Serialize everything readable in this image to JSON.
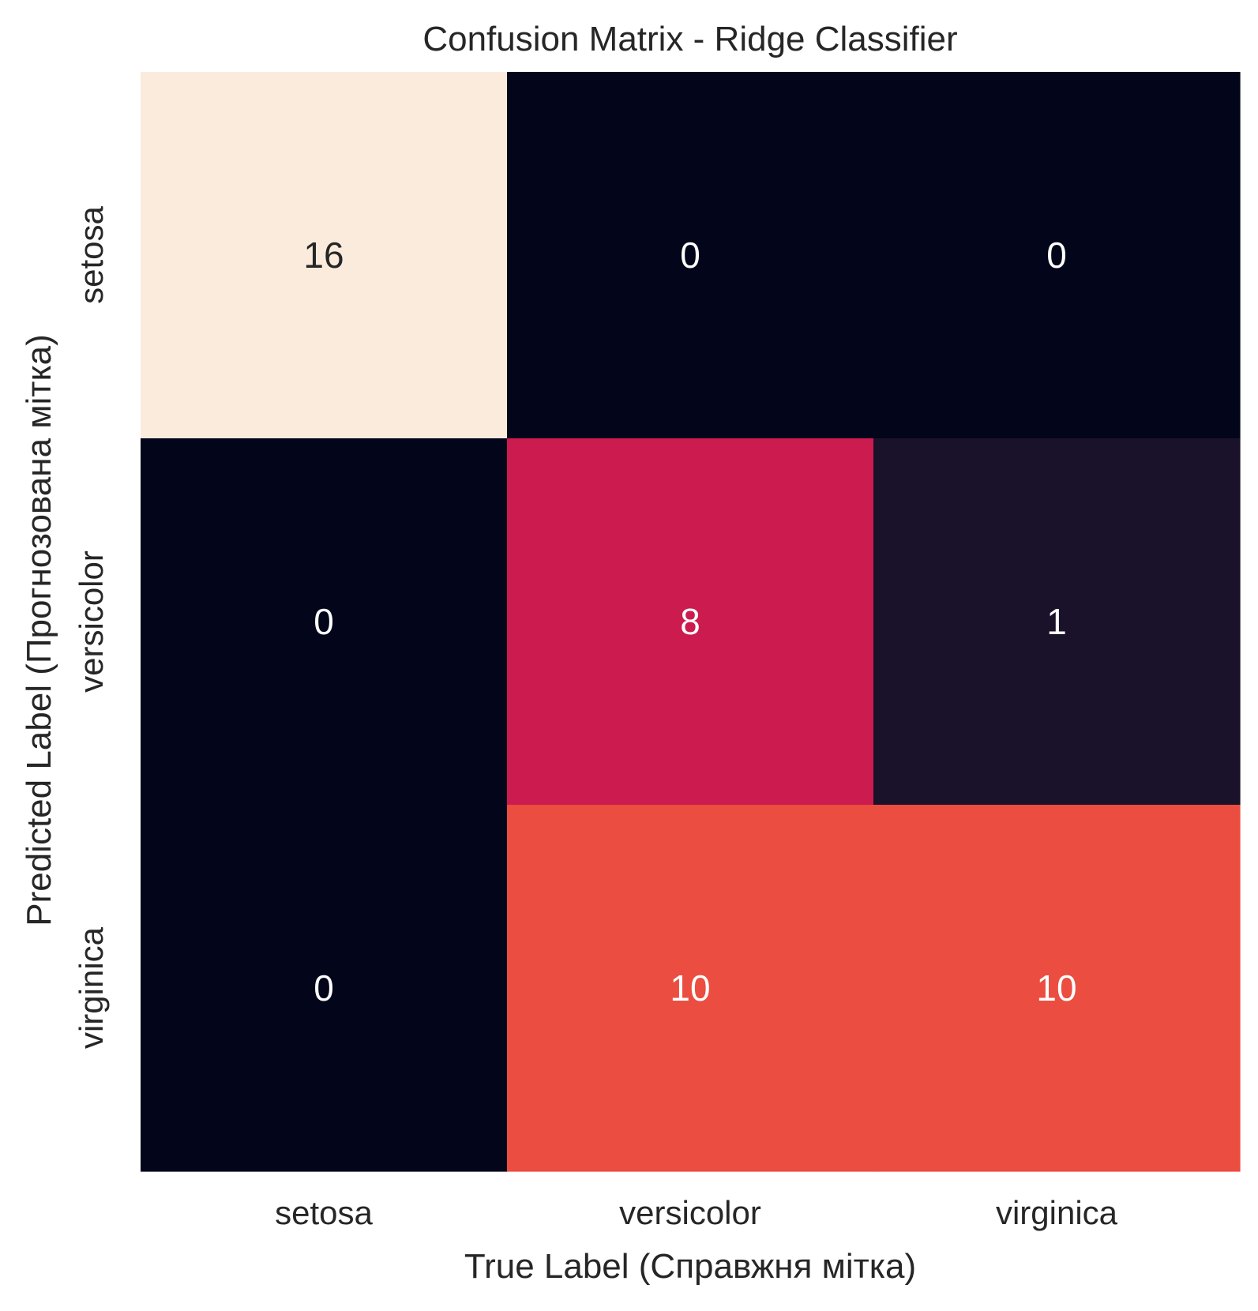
{
  "chart_data": {
    "type": "heatmap",
    "title": "Confusion Matrix - Ridge Classifier",
    "xlabel": "True Label (Справжня мітка)",
    "ylabel": "Predicted Label (Прогнозована мітка)",
    "x_categories": [
      "setosa",
      "versicolor",
      "virginica"
    ],
    "y_categories": [
      "setosa",
      "versicolor",
      "virginica"
    ],
    "values": [
      [
        16,
        0,
        0
      ],
      [
        0,
        8,
        1
      ],
      [
        0,
        10,
        10
      ]
    ],
    "colorscale": "rocket",
    "colorbar": false,
    "grid": false,
    "annotated": true
  },
  "colors": {
    "text_dark": "#262626",
    "annot_light": "#ffffff",
    "annot_dark": "#262626"
  }
}
